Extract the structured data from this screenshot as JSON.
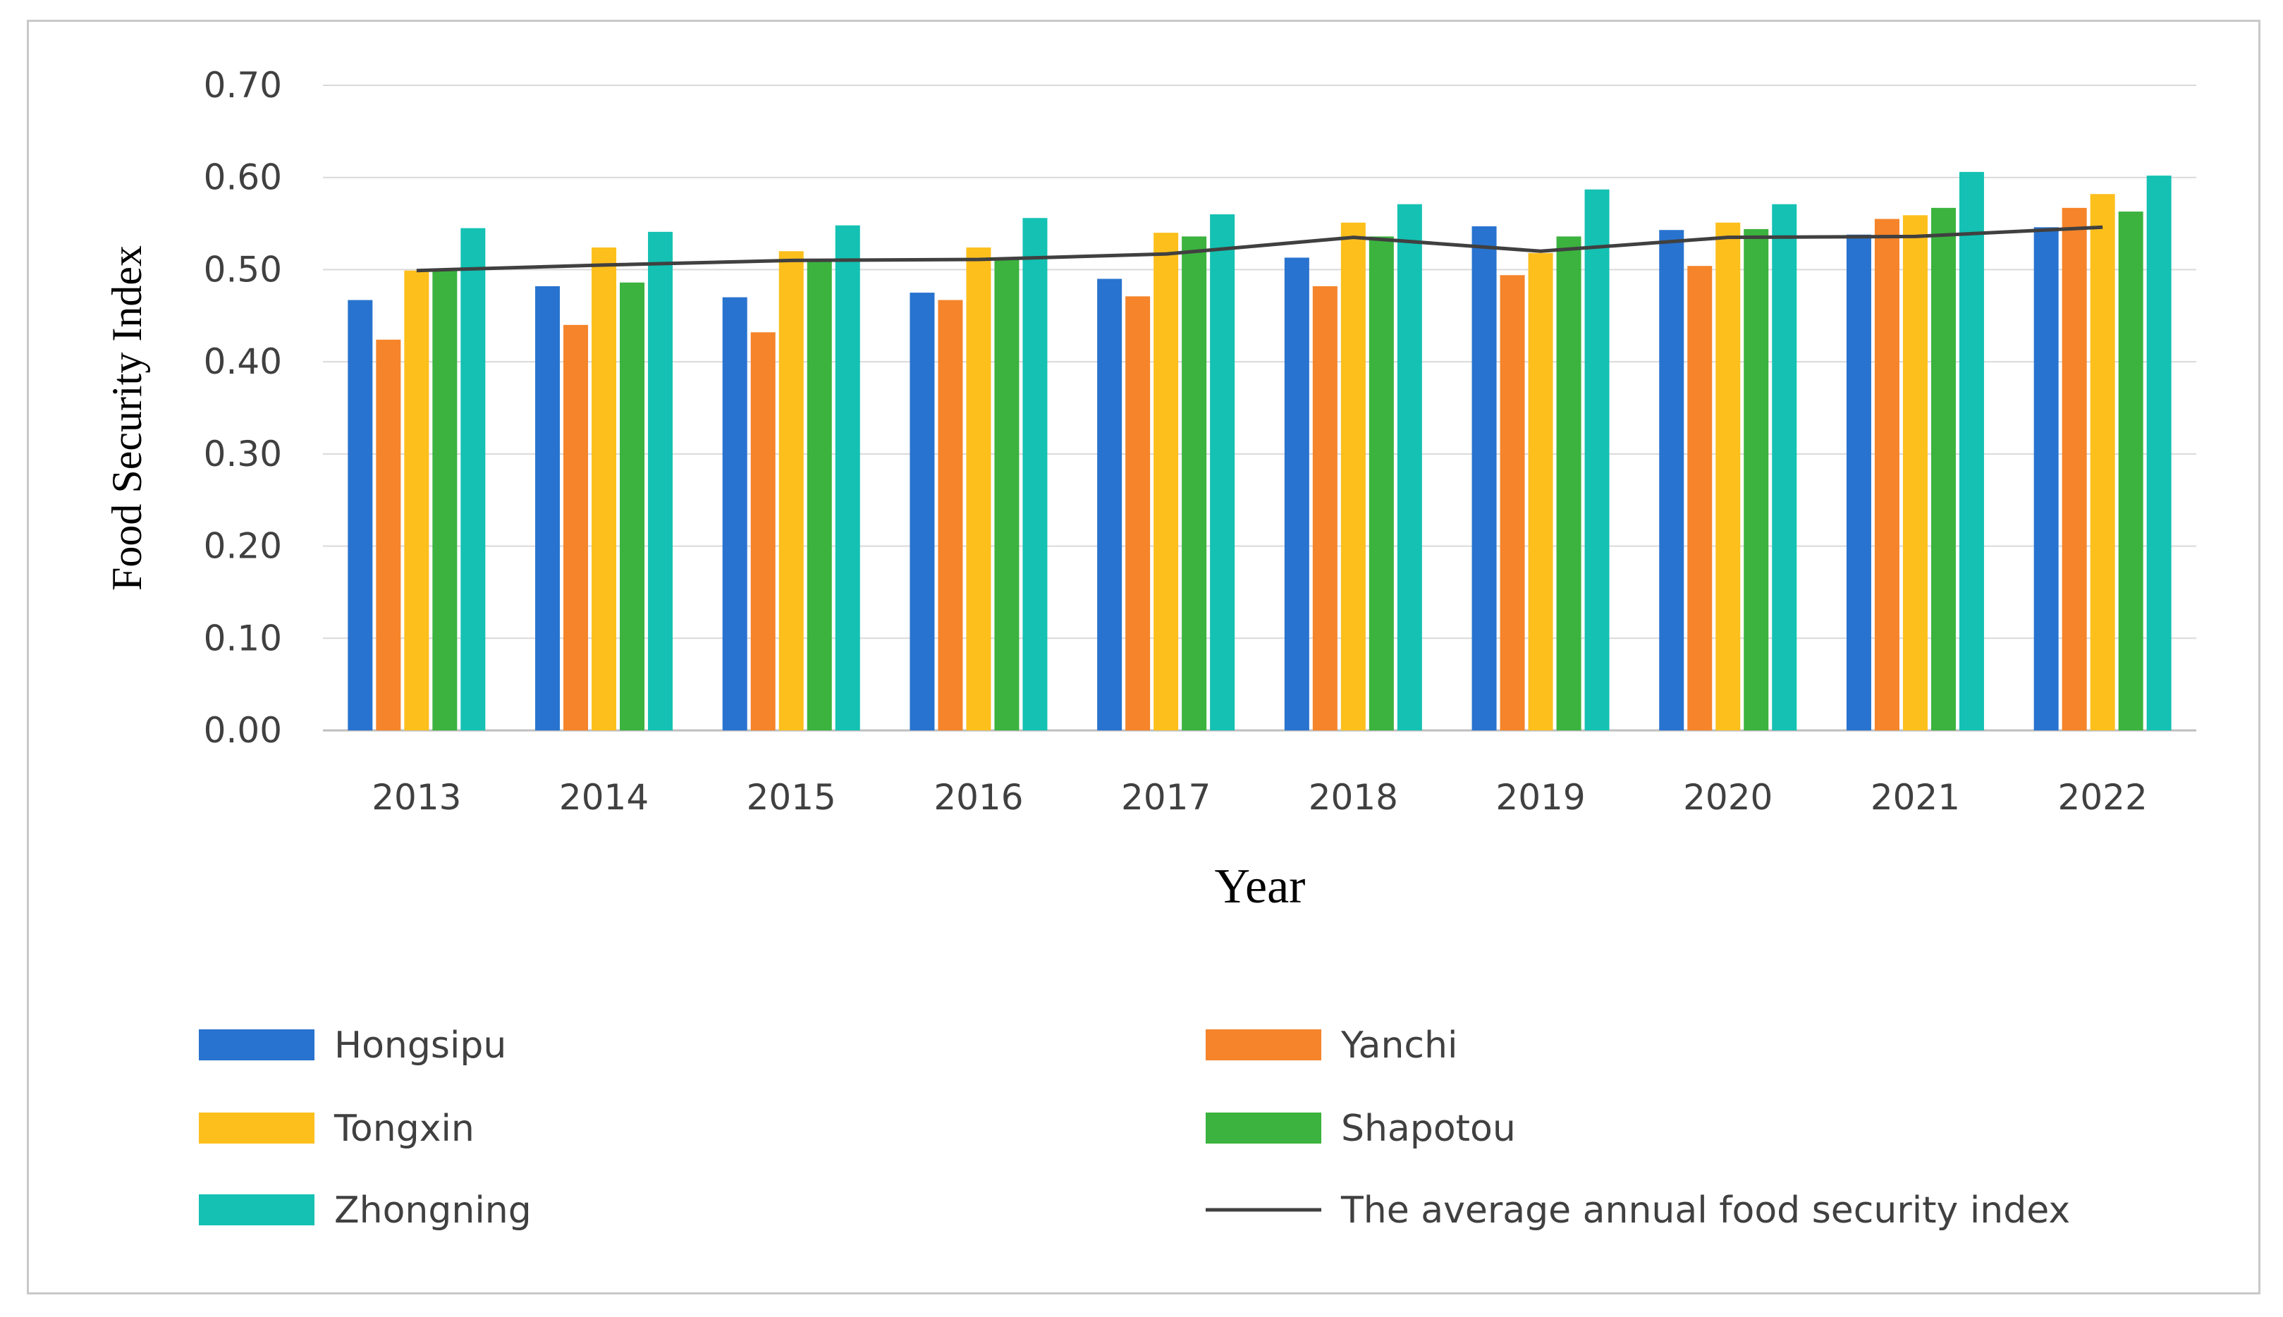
{
  "chart_data": {
    "type": "bar",
    "title": "",
    "xlabel": "Year",
    "ylabel": "Food Security Index",
    "ylim": [
      0,
      0.7
    ],
    "ytick_step": 0.1,
    "grid": true,
    "legend_position": "bottom",
    "categories": [
      "2013",
      "2014",
      "2015",
      "2016",
      "2017",
      "2018",
      "2019",
      "2020",
      "2021",
      "2022"
    ],
    "series": [
      {
        "name": "Hongsipu",
        "color": "#2873CF",
        "values": [
          0.467,
          0.482,
          0.47,
          0.475,
          0.49,
          0.513,
          0.547,
          0.543,
          0.538,
          0.546
        ]
      },
      {
        "name": "Yanchi",
        "color": "#F5842A",
        "values": [
          0.424,
          0.44,
          0.432,
          0.467,
          0.471,
          0.482,
          0.494,
          0.504,
          0.555,
          0.567
        ]
      },
      {
        "name": "Tongxin",
        "color": "#FDBF1C",
        "values": [
          0.499,
          0.524,
          0.52,
          0.524,
          0.54,
          0.551,
          0.518,
          0.551,
          0.559,
          0.582
        ]
      },
      {
        "name": "Shapotou",
        "color": "#3BB33E",
        "values": [
          0.501,
          0.486,
          0.51,
          0.512,
          0.536,
          0.536,
          0.536,
          0.544,
          0.567,
          0.563
        ]
      },
      {
        "name": "Zhongning",
        "color": "#14C1B3",
        "values": [
          0.545,
          0.541,
          0.548,
          0.556,
          0.56,
          0.571,
          0.587,
          0.571,
          0.606,
          0.602
        ]
      }
    ],
    "line_series": {
      "name": "The average annual food security index",
      "color": "#404040",
      "values": [
        0.499,
        0.505,
        0.51,
        0.511,
        0.517,
        0.535,
        0.52,
        0.535,
        0.536,
        0.546
      ]
    }
  }
}
